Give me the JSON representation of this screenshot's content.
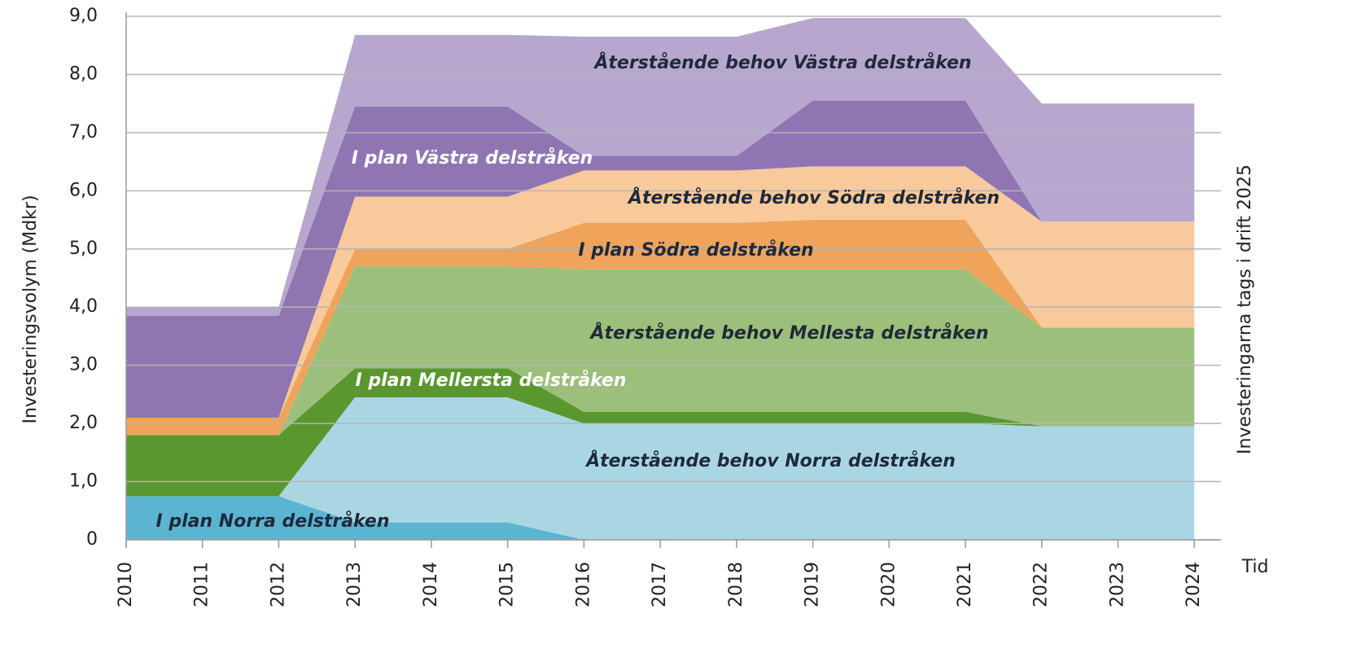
{
  "chart_data": {
    "type": "stacked_area",
    "y_label": "Investeringsvolym (Mdkr)",
    "y2_label": "Investeringarna tags i drift 2025",
    "x_label": "Tid",
    "x": [
      2010,
      2011,
      2012,
      2013,
      2014,
      2015,
      2016,
      2017,
      2018,
      2019,
      2020,
      2021,
      2022,
      2023,
      2024
    ],
    "xlim": [
      2010,
      2024.35
    ],
    "xticks": [
      2010,
      2011,
      2012,
      2013,
      2014,
      2015,
      2016,
      2017,
      2018,
      2019,
      2020,
      2021,
      2022,
      2023,
      2024
    ],
    "ylim": [
      0,
      9
    ],
    "yticks": [
      0,
      {
        "value": 1,
        "label": "1,0"
      },
      {
        "value": 2,
        "label": "2,0"
      },
      {
        "value": 3,
        "label": "3,0"
      },
      {
        "value": 4,
        "label": "4,0"
      },
      {
        "value": 5,
        "label": "5,0"
      },
      {
        "value": 6,
        "label": "6,0"
      },
      {
        "value": 7,
        "label": "7,0"
      },
      {
        "value": 8,
        "label": "8,0"
      },
      {
        "value": 9,
        "label": "9,0"
      }
    ],
    "grid": true,
    "series": [
      {
        "name": "I plan Norra delstråken",
        "color": "#5bb5d2",
        "values": [
          0.75,
          0.75,
          0.75,
          0.3,
          0.3,
          0.3,
          0,
          0,
          0,
          0,
          0,
          0,
          0,
          0,
          0
        ]
      },
      {
        "name": "Återstående behov Norra delstråken",
        "color": "#aad6e4",
        "values": [
          0,
          0,
          0,
          2.15,
          2.15,
          2.15,
          2.0,
          2.0,
          2.0,
          2.0,
          2.0,
          2.0,
          1.95,
          1.95,
          1.95
        ]
      },
      {
        "name": "I plan Mellersta delstråken",
        "color": "#5a972f",
        "values": [
          1.05,
          1.05,
          1.05,
          0.5,
          0.5,
          0.5,
          0.2,
          0.2,
          0.2,
          0.2,
          0.2,
          0.2,
          0,
          0,
          0
        ]
      },
      {
        "name": "Återstående behov Mellesta delstråken",
        "color": "#9cbf7b",
        "values": [
          0,
          0,
          0,
          1.75,
          1.75,
          1.75,
          2.45,
          2.45,
          2.45,
          2.45,
          2.45,
          2.45,
          1.7,
          1.7,
          1.7
        ]
      },
      {
        "name": "I plan Södra delstråken",
        "color": "#f0a35b",
        "values": [
          0.3,
          0.3,
          0.3,
          0.3,
          0.3,
          0.3,
          0.8,
          0.8,
          0.8,
          0.85,
          0.85,
          0.85,
          0,
          0,
          0
        ]
      },
      {
        "name": "Återstående behov Södra delstråken",
        "color": "#f8c99b",
        "values": [
          0,
          0,
          0,
          0.9,
          0.9,
          0.9,
          0.9,
          0.9,
          0.9,
          0.92,
          0.92,
          0.92,
          1.82,
          1.82,
          1.82
        ]
      },
      {
        "name": "I plan Västra delstråken",
        "color": "#8f76b2",
        "values": [
          1.75,
          1.75,
          1.75,
          1.55,
          1.55,
          1.55,
          0.25,
          0.25,
          0.25,
          1.13,
          1.13,
          1.13,
          0,
          0,
          0
        ]
      },
      {
        "name": "Återstående behov Västra delstråken",
        "color": "#b7a7cf",
        "values": [
          0.15,
          0.15,
          0.15,
          1.23,
          1.23,
          1.23,
          2.05,
          2.05,
          2.05,
          1.42,
          1.42,
          1.42,
          2.03,
          2.03,
          2.03
        ]
      }
    ]
  }
}
